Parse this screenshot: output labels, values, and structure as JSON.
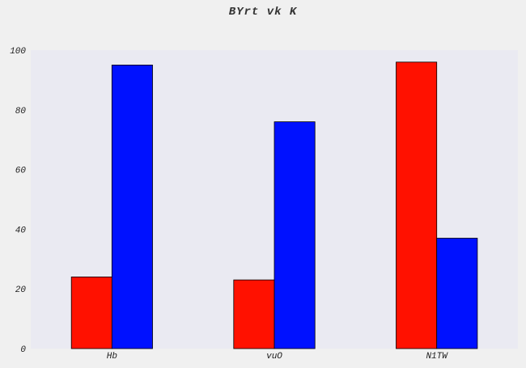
{
  "chart_data": {
    "type": "bar",
    "title": "BYrt vk K",
    "xlabel": "",
    "ylabel": "",
    "categories": [
      "Hb",
      "vuO",
      "N1TW"
    ],
    "series": [
      {
        "values": [
          24,
          23,
          96
        ],
        "color": "#ff1100"
      },
      {
        "values": [
          95,
          76,
          37
        ],
        "color": "#0011ff"
      }
    ],
    "ylim": [
      0,
      100
    ],
    "yticks": [
      0,
      20,
      40,
      60,
      80,
      100
    ],
    "grid": false,
    "legend": "none",
    "colors": {
      "plot_background": "#eaeaf2",
      "page_background": "#f0f0f0",
      "bar_edge": "#000000"
    }
  }
}
